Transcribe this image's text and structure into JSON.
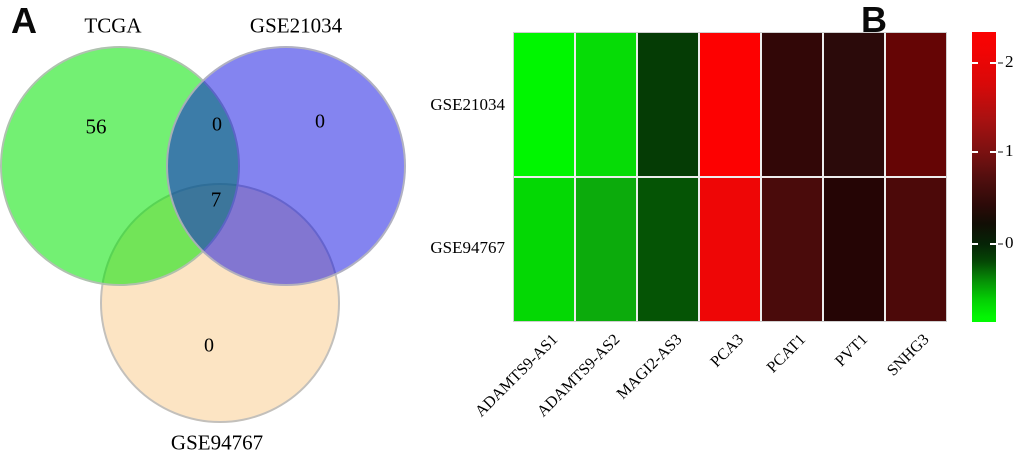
{
  "figure": {
    "panel_a_letter": "A",
    "panel_b_letter": "B"
  },
  "venn": {
    "set_labels": {
      "tcga": "TCGA",
      "gse21034": "GSE21034",
      "gse94767": "GSE94767"
    },
    "counts": {
      "tcga_only": "56",
      "tcga_and_gse21034": "0",
      "gse21034_only": "0",
      "all_three": "7",
      "gse94767_only": "0"
    },
    "fill_colors": {
      "tcga": "#00e400",
      "gse21034": "#0505e1",
      "gse94767": "#facd91"
    }
  },
  "heatmap": {
    "row_labels": [
      "GSE21034",
      "GSE94767"
    ],
    "col_labels": [
      "ADAMTS9-AS1",
      "ADAMTS9-AS2",
      "MAGI2-AS3",
      "PCA3",
      "PCAT1",
      "PVT1",
      "SNHG3"
    ],
    "cell_colors": [
      "#00f600",
      "#06dc06",
      "#053c05",
      "#fd0101",
      "#320707",
      "#2b0a0a",
      "#650505",
      "#04d804",
      "#0cab0c",
      "#055405",
      "#ee0606",
      "#4a0b0b",
      "#250505",
      "#4c0909"
    ],
    "colorbar": {
      "tick_labels": [
        "2",
        "1",
        "0"
      ],
      "top_color": "#fb0202",
      "mid_color": "#120e05",
      "bottom_color": "#02fa02"
    }
  },
  "chart_data": [
    {
      "type": "venn",
      "title": "",
      "sets": [
        "TCGA",
        "GSE21034",
        "GSE94767"
      ],
      "region_counts": {
        "TCGA_only": 56,
        "GSE21034_only": 0,
        "GSE94767_only": 0,
        "TCGA_and_GSE21034": 0,
        "TCGA_and_GSE21034_and_GSE94767": 7
      },
      "set_fill_colors": [
        "#00e400",
        "#0505e1",
        "#facd91"
      ]
    },
    {
      "type": "heatmap",
      "title": "",
      "x": [
        "ADAMTS9-AS1",
        "ADAMTS9-AS2",
        "MAGI2-AS3",
        "PCA3",
        "PCAT1",
        "PVT1",
        "SNHG3"
      ],
      "y": [
        "GSE21034",
        "GSE94767"
      ],
      "values_estimated": [
        [
          -0.8,
          -0.65,
          -0.1,
          2.3,
          0.5,
          0.45,
          0.9
        ],
        [
          -0.6,
          -0.5,
          -0.2,
          2.1,
          0.65,
          0.4,
          0.7
        ]
      ],
      "cell_colors": [
        [
          "#00f600",
          "#06dc06",
          "#053c05",
          "#fd0101",
          "#320707",
          "#2b0a0a",
          "#650505"
        ],
        [
          "#04d804",
          "#0cab0c",
          "#055405",
          "#ee0606",
          "#4a0b0b",
          "#250505",
          "#4c0909"
        ]
      ],
      "colorbar_ticks": [
        2,
        1,
        0
      ],
      "color_scale_range_approx": [
        -0.9,
        2.35
      ],
      "colormap": "green-black-red",
      "legend_position": "right",
      "grid": false
    }
  ]
}
